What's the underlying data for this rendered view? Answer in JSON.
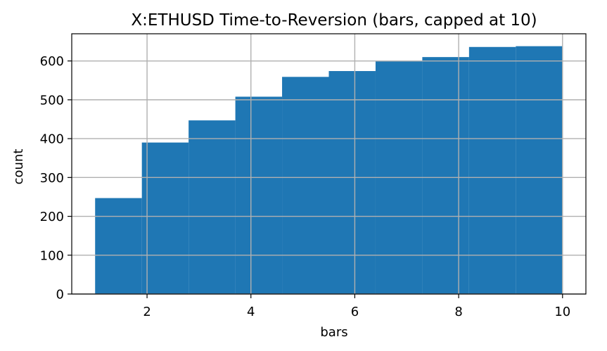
{
  "chart_data": {
    "type": "bar",
    "title": "X:ETHUSD Time-to-Reversion (bars, capped at 10)",
    "xlabel": "bars",
    "ylabel": "count",
    "bin_edges": [
      1.0,
      1.9,
      2.8,
      3.7,
      4.6,
      5.5,
      6.4,
      7.3,
      8.2,
      9.1,
      10.0
    ],
    "values": [
      247,
      390,
      447,
      508,
      559,
      574,
      599,
      610,
      636,
      638
    ],
    "xlim": [
      0.55,
      10.45
    ],
    "ylim": [
      0,
      670
    ],
    "xticks": [
      2,
      4,
      6,
      8,
      10
    ],
    "yticks": [
      0,
      100,
      200,
      300,
      400,
      500,
      600
    ],
    "grid": true,
    "bar_color": "#1f77b4",
    "grid_color": "#b0b0b0"
  }
}
